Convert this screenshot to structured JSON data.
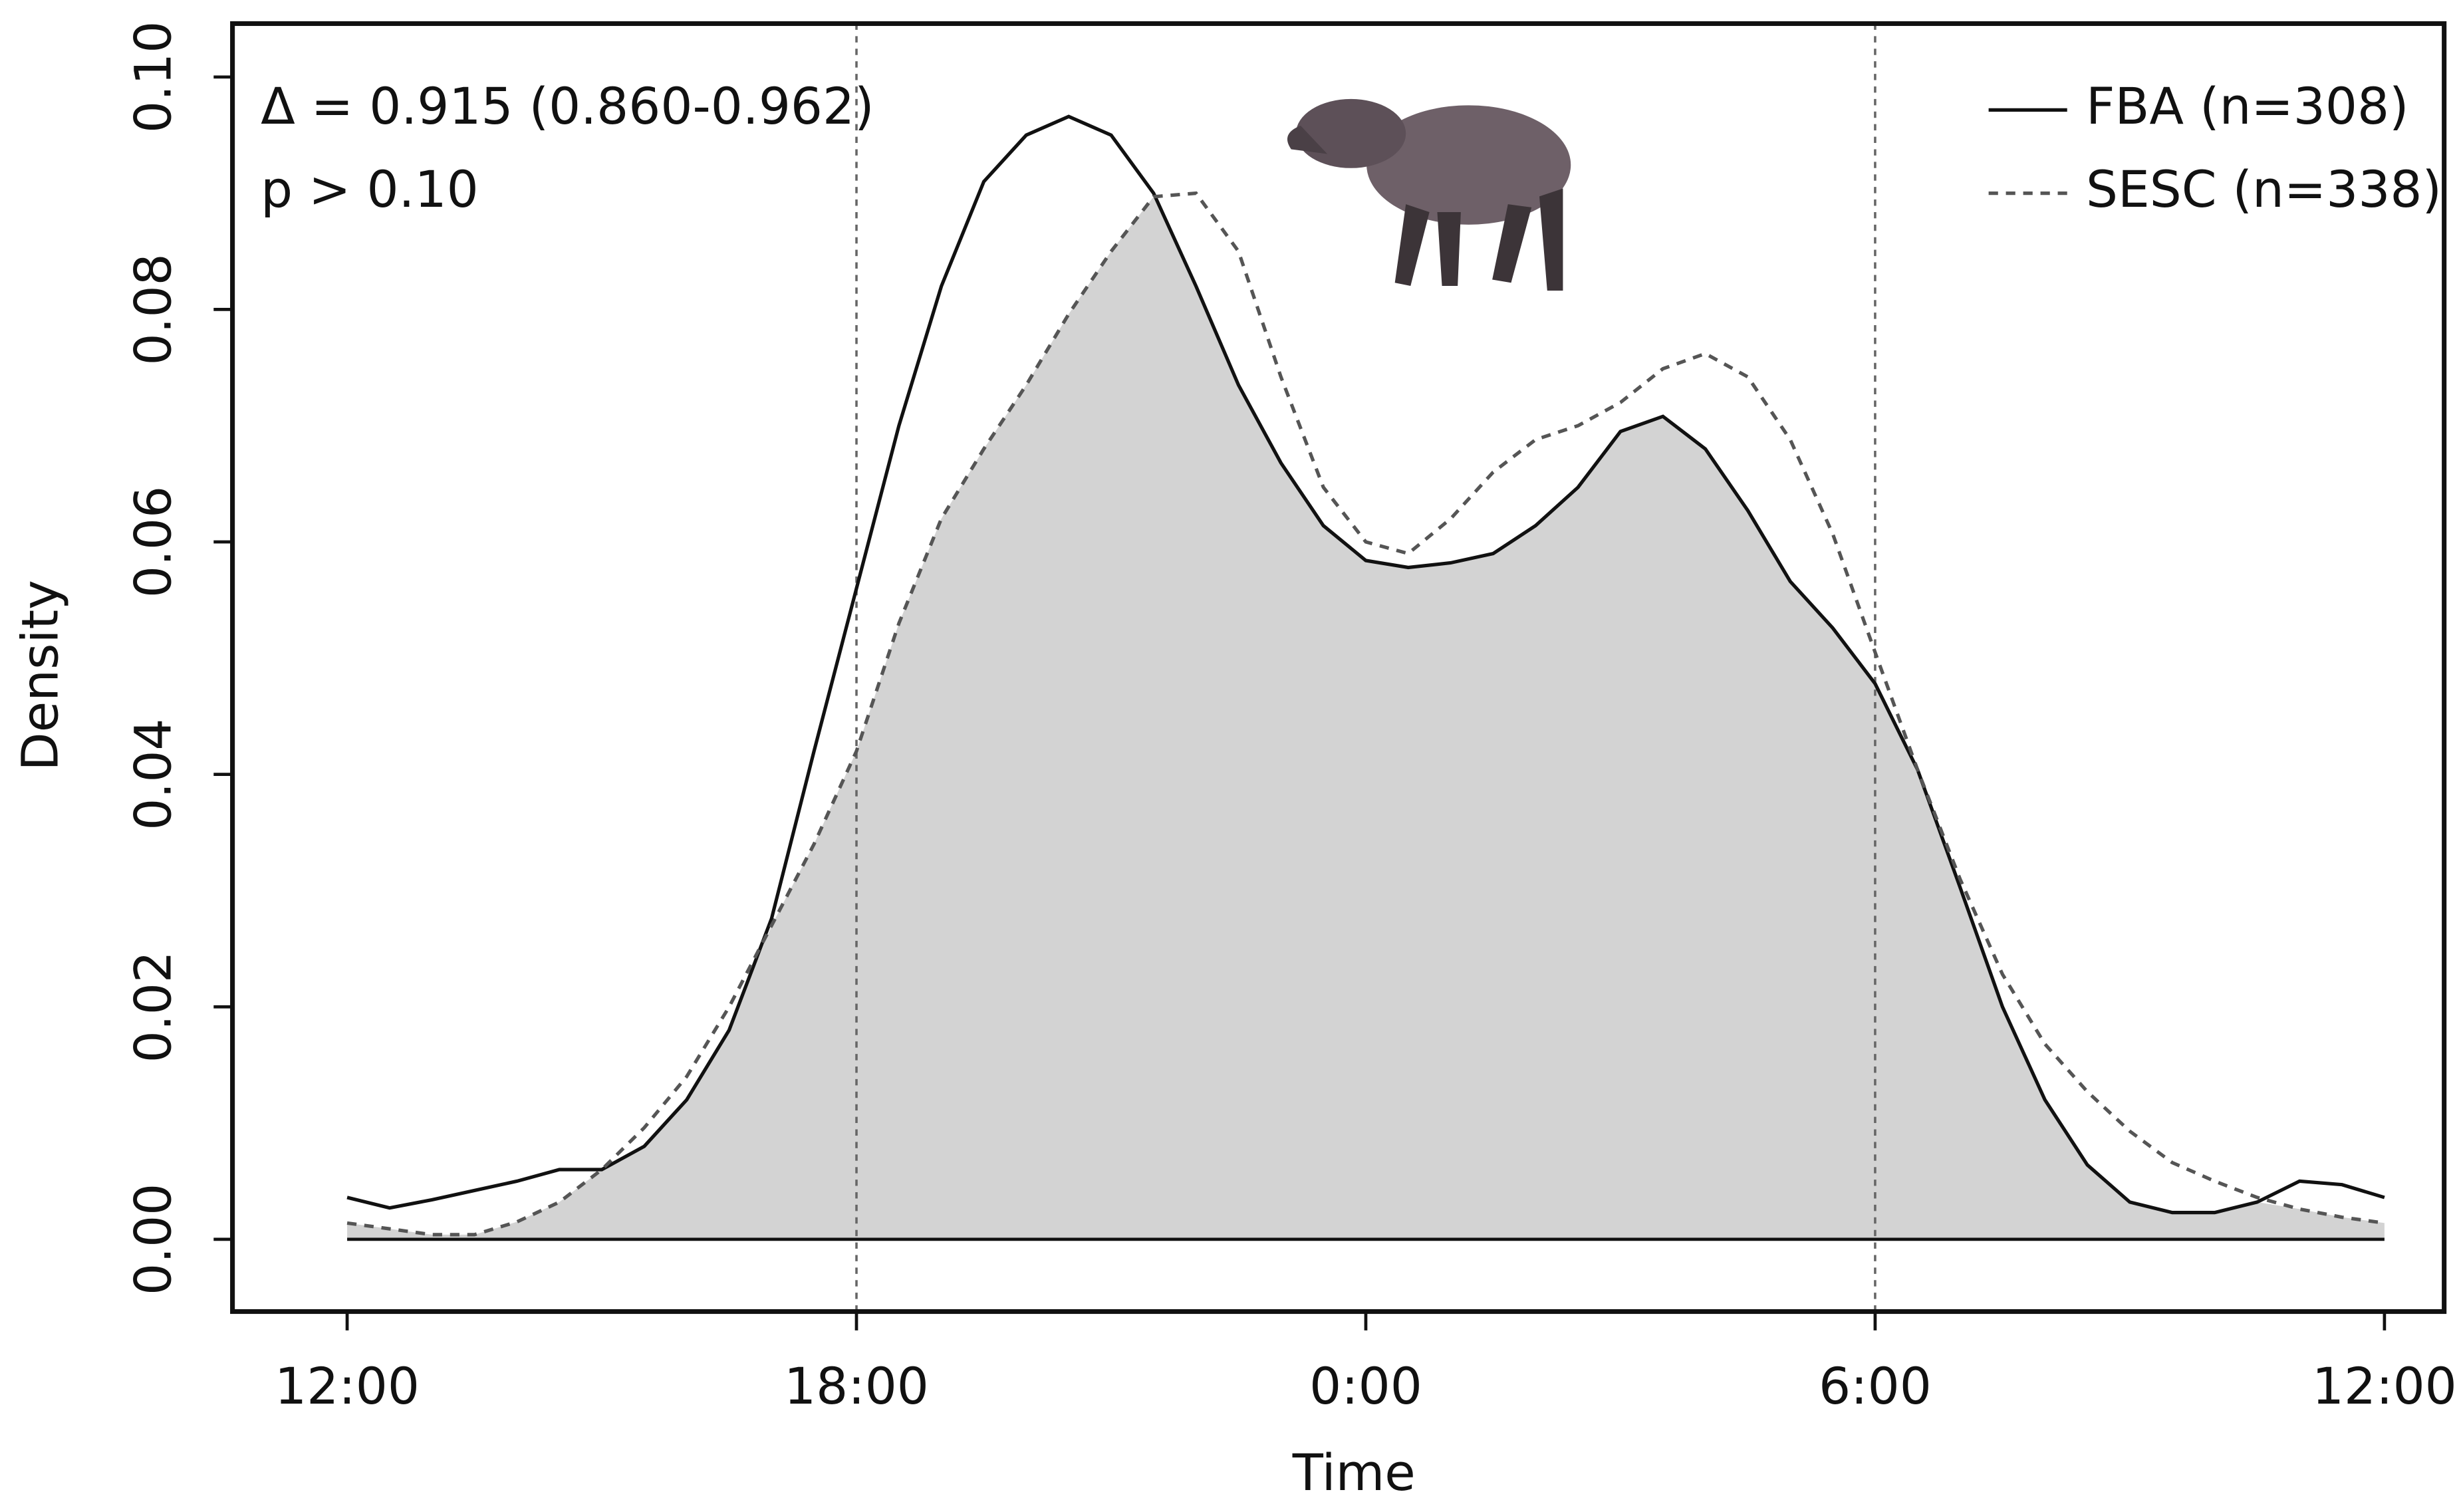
{
  "chart_data": {
    "type": "line",
    "xlabel": "Time",
    "ylabel": "Density",
    "annotations": [
      "Δ = 0.915 (0.860-0.962)",
      "p > 0.10"
    ],
    "x": [
      12,
      12.5,
      13,
      13.5,
      14,
      14.5,
      15,
      15.5,
      16,
      16.5,
      17,
      17.5,
      18,
      18.5,
      19,
      19.5,
      20,
      20.5,
      21,
      21.5,
      22,
      22.5,
      23,
      23.5,
      24,
      24.5,
      25,
      25.5,
      26,
      26.5,
      27,
      27.5,
      28,
      28.5,
      29,
      29.5,
      30,
      30.5,
      31,
      31.5,
      32,
      32.5,
      33,
      33.5,
      34,
      34.5,
      35,
      35.5,
      36
    ],
    "series": [
      {
        "name": "FBA (n=308)",
        "color": "#111111",
        "line_style": "solid",
        "values": [
          0.0036,
          0.0027,
          0.0034,
          0.0042,
          0.005,
          0.006,
          0.006,
          0.008,
          0.012,
          0.018,
          0.0276,
          0.042,
          0.056,
          0.07,
          0.082,
          0.091,
          0.095,
          0.0966,
          0.095,
          0.09,
          0.082,
          0.0735,
          0.0668,
          0.0614,
          0.0584,
          0.0578,
          0.0582,
          0.059,
          0.0614,
          0.0647,
          0.0695,
          0.0708,
          0.068,
          0.0627,
          0.0566,
          0.0526,
          0.0478,
          0.0404,
          0.0303,
          0.02,
          0.012,
          0.0064,
          0.0032,
          0.0023,
          0.0023,
          0.0032,
          0.005,
          0.0047,
          0.0036
        ]
      },
      {
        "name": "SESC (n=338)",
        "color": "#555555",
        "line_style": "dashed",
        "values": [
          0.0014,
          0.0009,
          0.0004,
          0.0004,
          0.0015,
          0.0032,
          0.006,
          0.0096,
          0.014,
          0.02,
          0.027,
          0.034,
          0.042,
          0.053,
          0.062,
          0.068,
          0.0735,
          0.0796,
          0.085,
          0.0897,
          0.09,
          0.085,
          0.0742,
          0.0647,
          0.06,
          0.059,
          0.062,
          0.066,
          0.0688,
          0.07,
          0.072,
          0.0749,
          0.0762,
          0.0742,
          0.0688,
          0.0607,
          0.0505,
          0.0404,
          0.031,
          0.0228,
          0.0168,
          0.0127,
          0.0093,
          0.0066,
          0.005,
          0.0036,
          0.0026,
          0.0019,
          0.0014
        ]
      }
    ],
    "overlap_color": "#d3d3d3",
    "reference_lines": [
      18,
      30
    ],
    "xlim": [
      12,
      36
    ],
    "xticks": [
      {
        "value": 12,
        "label": "12:00"
      },
      {
        "value": 18,
        "label": "18:00"
      },
      {
        "value": 24,
        "label": "0:00"
      },
      {
        "value": 30,
        "label": "6:00"
      },
      {
        "value": 36,
        "label": "12:00"
      }
    ],
    "ylim": [
      0,
      0.1
    ],
    "yticks": [
      {
        "value": 0,
        "label": "0.00"
      },
      {
        "value": 0.02,
        "label": "0.02"
      },
      {
        "value": 0.04,
        "label": "0.04"
      },
      {
        "value": 0.06,
        "label": "0.06"
      },
      {
        "value": 0.08,
        "label": "0.08"
      },
      {
        "value": 0.1,
        "label": "0.10"
      }
    ],
    "legend": "top-right",
    "grid": false
  }
}
